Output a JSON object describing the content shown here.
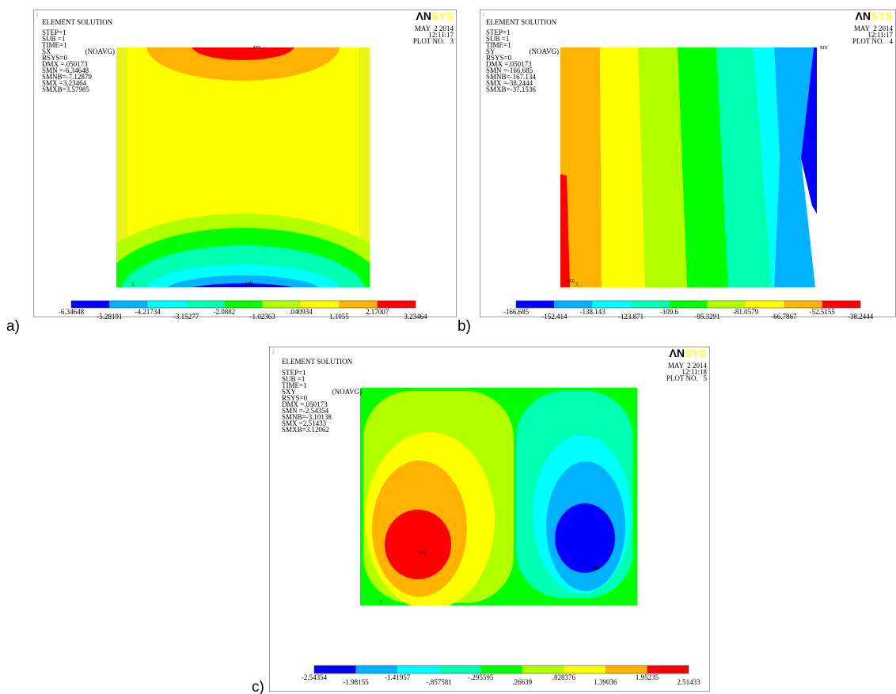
{
  "panels": [
    {
      "label": "a)",
      "corner": "1",
      "heading": "ELEMENT SOLUTION",
      "component": "SX",
      "avg": "(NOAVG)",
      "info": [
        "STEP=1",
        "SUB =1",
        "TIME=1",
        "RSYS=0",
        "DMX =.050173",
        "SMN =-6.34648",
        "SMNB=-7.12879",
        "SMX =3.23464",
        "SMXB=3.57985"
      ],
      "logo_a": "ΛN",
      "logo_b": "SYS",
      "date": "MAY  2 2014",
      "time": "12:11:17",
      "plot": "PLOT NO.   3",
      "max_tag": "MX",
      "min_tag": "MN",
      "triad": "X",
      "legend": [
        "-6.34648",
        "-5.28191",
        "-4.21734",
        "-3.15277",
        "-2.0882",
        "-1.02363",
        ".040934",
        "1.1055",
        "2.17007",
        "3.23464"
      ]
    },
    {
      "label": "b)",
      "corner": "1",
      "heading": "ELEMENT SOLUTION",
      "component": "SY",
      "avg": "(NOAVG)",
      "info": [
        "STEP=1",
        "SUB =1",
        "TIME=1",
        "RSYS=0",
        "DMX =.050173",
        "SMN =-166.685",
        "SMNB=-167.134",
        "SMX =-38.2444",
        "SMXB=-37.1536"
      ],
      "logo_a": "ΛN",
      "logo_b": "SYS",
      "date": "MAY  2 2014",
      "time": "12:11:17",
      "plot": "PLOT NO.   4",
      "max_tag": "MX",
      "min_tag": "MN",
      "triad": "X",
      "legend": [
        "-166.685",
        "-152.414",
        "-138.143",
        "-123.871",
        "-109.6",
        "-95.3291",
        "-81.0579",
        "-66.7867",
        "-52.5155",
        "-38.2444"
      ]
    },
    {
      "label": "c)",
      "corner": "1",
      "heading": "ELEMENT SOLUTION",
      "component": "SXY",
      "avg": "(NOAVG)",
      "info": [
        "STEP=1",
        "SUB =1",
        "TIME=1",
        "RSYS=0",
        "DMX =.050173",
        "SMN =-2.54354",
        "SMNB=-3.10138",
        "SMX =2.51433",
        "SMXB=3.12062"
      ],
      "logo_a": "ΛN",
      "logo_b": "SYS",
      "date": "MAY  2 2014",
      "time": "12:11:18",
      "plot": "PLOT NO.   5",
      "max_tag": "MX",
      "min_tag": "MN",
      "triad": "X",
      "legend": [
        "-2.54354",
        "-1.98155",
        "-1.41957",
        "-.857581",
        "-.295595",
        ".26639",
        ".828376",
        "1.39036",
        "1.95235",
        "2.51433"
      ]
    }
  ]
}
